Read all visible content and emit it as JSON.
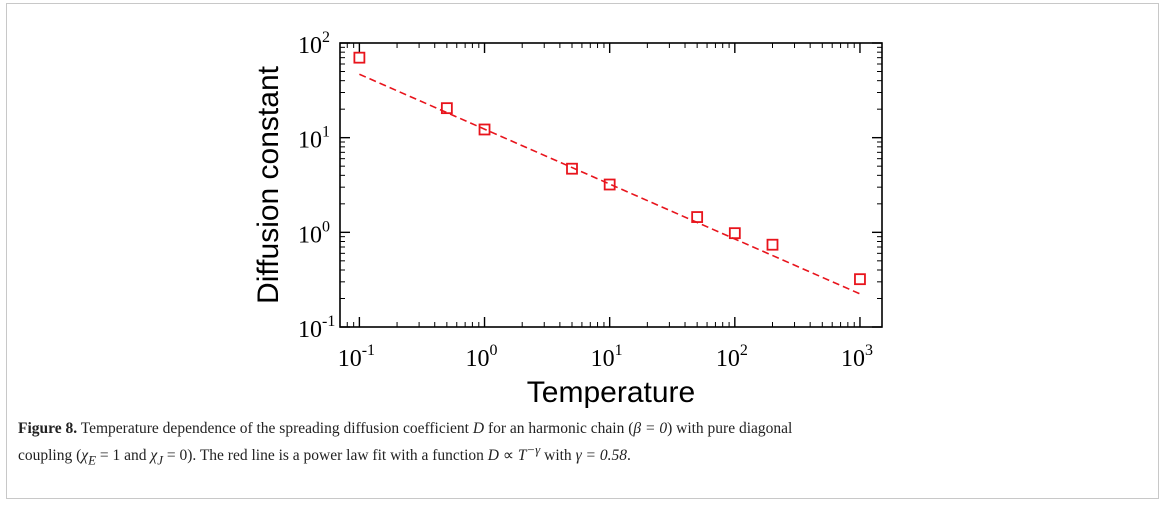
{
  "chart_data": {
    "type": "scatter",
    "xlabel": "Temperature",
    "ylabel": "Diffusion constant",
    "xscale": "log",
    "yscale": "log",
    "xlim": [
      0.07,
      1500
    ],
    "ylim": [
      0.1,
      100
    ],
    "grid": false,
    "x_ticks": [
      {
        "value": 0.1,
        "base": "10",
        "exp": "-1"
      },
      {
        "value": 1,
        "base": "10",
        "exp": "0"
      },
      {
        "value": 10,
        "base": "10",
        "exp": "1"
      },
      {
        "value": 100,
        "base": "10",
        "exp": "2"
      },
      {
        "value": 1000,
        "base": "10",
        "exp": "3"
      }
    ],
    "y_ticks": [
      {
        "value": 0.1,
        "base": "10",
        "exp": "-1"
      },
      {
        "value": 1,
        "base": "10",
        "exp": "0"
      },
      {
        "value": 10,
        "base": "10",
        "exp": "1"
      },
      {
        "value": 100,
        "base": "10",
        "exp": "2"
      }
    ],
    "series": [
      {
        "marker": "square",
        "color": "#e8141c",
        "x": [
          0.1,
          0.5,
          1,
          5,
          10,
          50,
          100,
          200,
          1000
        ],
        "y": [
          70,
          20.5,
          12.2,
          4.7,
          3.2,
          1.45,
          0.98,
          0.74,
          0.32
        ]
      },
      {
        "line": "dashed",
        "color": "#e8141c",
        "fit": {
          "form": "power-law",
          "prefactor": 12.3,
          "gamma": 0.58
        },
        "x_range": [
          0.1,
          1000
        ]
      }
    ]
  },
  "caption": {
    "label": "Figure 8.",
    "text_1": " Temperature dependence of the spreading diffusion coefficient ",
    "D_1": "D",
    "text_2": " for an harmonic chain (",
    "beta_expr": "β = 0",
    "text_3": ") with pure diagonal",
    "text_4": "coupling (",
    "chiE_expr": "χ",
    "chiE_sub": "E",
    "chiE_val": " = 1",
    "text_5": " and ",
    "chiJ_expr": "χ",
    "chiJ_sub": "J",
    "chiJ_val": " = 0",
    "text_6": "). The red line is a power law fit with a function ",
    "D_2": "D",
    "prop": " ∝ ",
    "T": "T",
    "T_exp": "−γ",
    "text_7": " with ",
    "gamma_expr": "γ = 0.58",
    "text_8": "."
  }
}
